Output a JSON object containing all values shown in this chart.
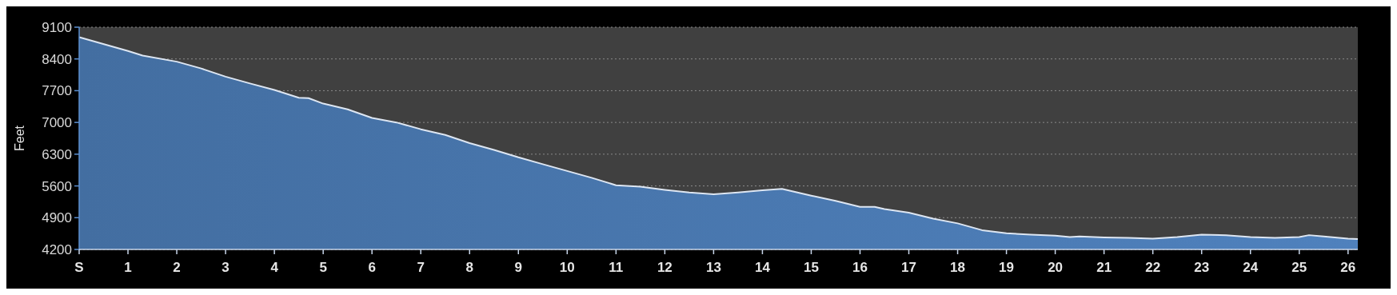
{
  "chart_data": {
    "type": "area",
    "ylabel": "Feet",
    "grid": "y",
    "xlim": [
      0,
      26.2
    ],
    "ylim": [
      4200,
      9100
    ],
    "xticks": [
      {
        "value": 0,
        "label": "S"
      },
      1,
      2,
      3,
      4,
      5,
      6,
      7,
      8,
      9,
      10,
      11,
      12,
      13,
      14,
      15,
      16,
      17,
      18,
      19,
      20,
      21,
      22,
      23,
      24,
      25,
      26
    ],
    "yticks": [
      4200,
      4900,
      5600,
      6300,
      7000,
      7700,
      8400,
      9100
    ],
    "series": [
      {
        "color": "#4f81bd",
        "x": [
          0,
          1,
          1.3,
          2,
          2.5,
          3,
          3.5,
          4,
          4.5,
          4.7,
          5,
          5.5,
          6,
          6.5,
          7,
          7.5,
          8,
          8.5,
          9,
          9.5,
          10,
          10.5,
          11,
          11.5,
          12,
          12.5,
          13,
          13.5,
          14,
          14.4,
          15,
          15.5,
          16,
          16.3,
          16.5,
          17,
          17.5,
          18,
          18.5,
          19,
          19.5,
          20,
          20.3,
          20.5,
          21,
          21.5,
          22,
          22.5,
          23,
          23.5,
          24,
          24.5,
          25,
          25.2,
          25.5,
          26,
          26.2
        ],
        "values": [
          8880,
          8575,
          8475,
          8340,
          8190,
          8010,
          7860,
          7715,
          7545,
          7535,
          7415,
          7290,
          7100,
          7000,
          6850,
          6725,
          6545,
          6395,
          6230,
          6080,
          5930,
          5780,
          5615,
          5585,
          5515,
          5455,
          5415,
          5455,
          5505,
          5535,
          5385,
          5270,
          5140,
          5140,
          5090,
          5010,
          4880,
          4775,
          4625,
          4555,
          4525,
          4505,
          4475,
          4485,
          4465,
          4455,
          4440,
          4475,
          4525,
          4515,
          4475,
          4455,
          4475,
          4515,
          4485,
          4440,
          4430
        ]
      }
    ]
  }
}
